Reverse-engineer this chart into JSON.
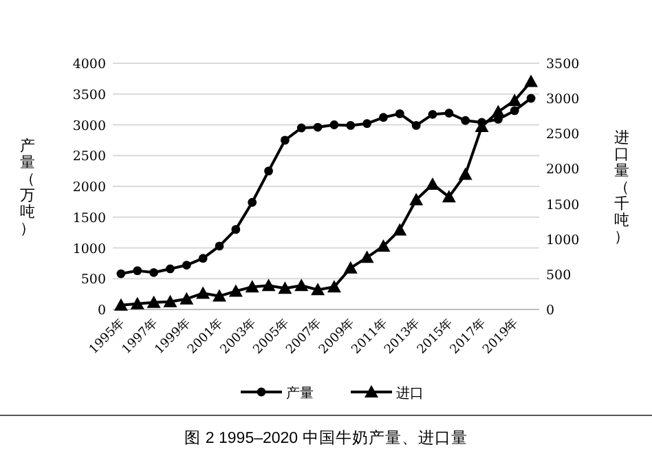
{
  "chart_data": {
    "type": "line",
    "title": "图 2 1995–2020 中国牛奶产量、进口量",
    "categories": [
      "1995年",
      null,
      "1997年",
      null,
      "1999年",
      null,
      "2001年",
      null,
      "2003年",
      null,
      "2005年",
      null,
      "2007年",
      null,
      "2009年",
      null,
      "2011年",
      null,
      "2013年",
      null,
      "2015年",
      null,
      "2017年",
      null,
      "2019年",
      null
    ],
    "series": [
      {
        "name": "产量",
        "color": "#000000",
        "marker": "circle",
        "values": [
          580,
          630,
          600,
          660,
          720,
          830,
          1030,
          1300,
          1740,
          2250,
          2750,
          2950,
          2960,
          3000,
          2990,
          3020,
          3120,
          3180,
          2990,
          3170,
          3190,
          3070,
          3040,
          3090,
          3230,
          3430
        ]
      },
      {
        "name": "进口",
        "color": "#000000",
        "marker": "triangle",
        "axis": "y2",
        "values": [
          60,
          80,
          100,
          110,
          150,
          230,
          190,
          260,
          320,
          340,
          300,
          340,
          280,
          320,
          590,
          740,
          900,
          1130,
          1560,
          1780,
          1600,
          1920,
          2600,
          2810,
          2970,
          3240
        ]
      }
    ],
    "ylabel": "产量（万吨）",
    "y2label": "进口量（千吨）",
    "ylim": [
      0,
      4000
    ],
    "yticks": [
      0,
      500,
      1000,
      1500,
      2000,
      2500,
      3000,
      3500,
      4000
    ],
    "y2lim": [
      0,
      3500
    ],
    "y2ticks": [
      0,
      500,
      1000,
      1500,
      2000,
      2500,
      3000,
      3500
    ],
    "grid": "y",
    "legend": "bottom",
    "line_style": "solid"
  }
}
